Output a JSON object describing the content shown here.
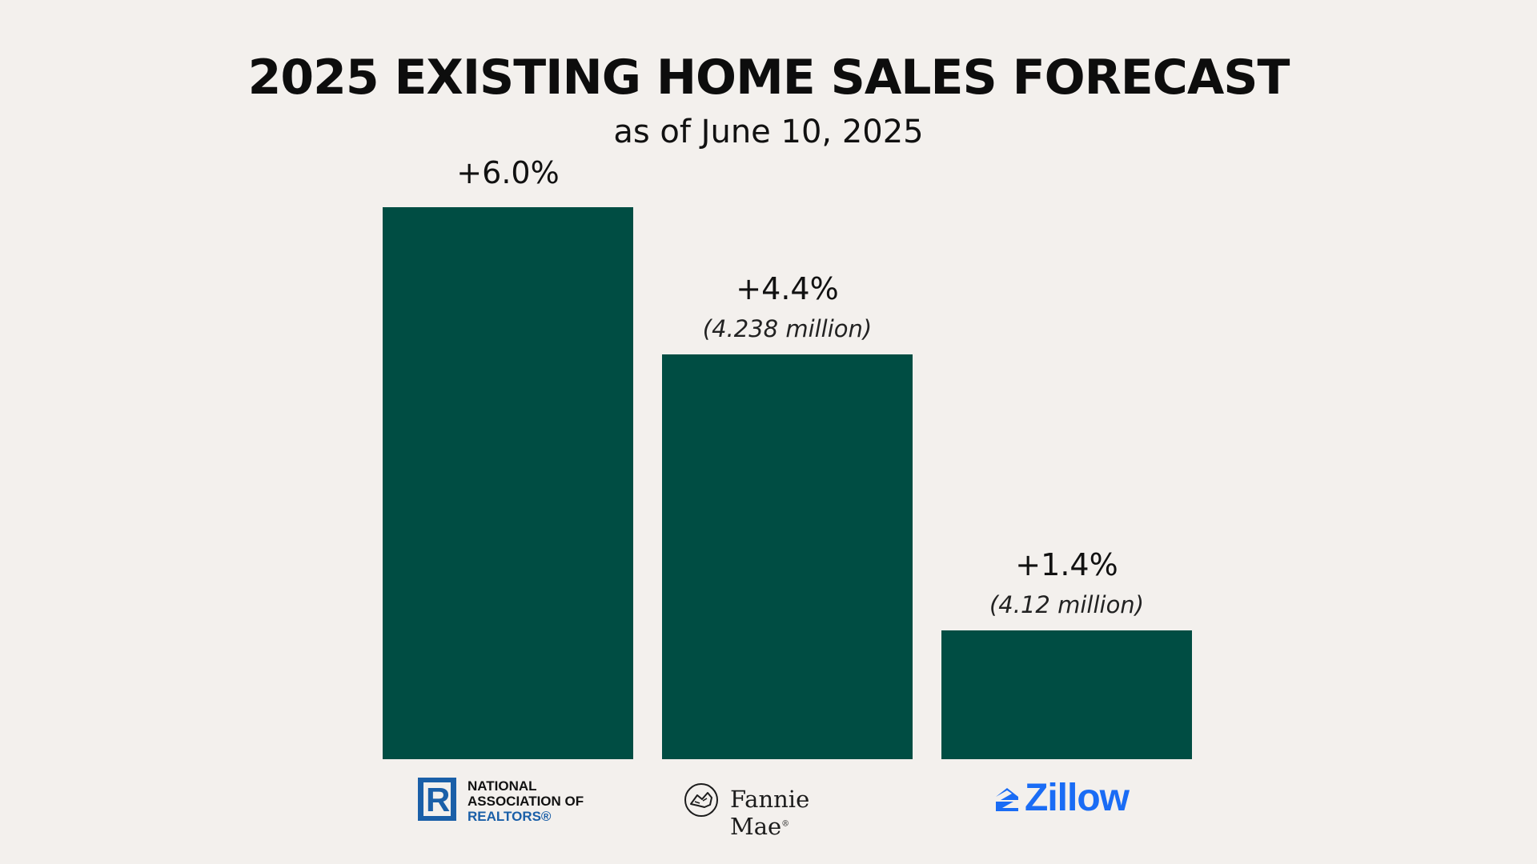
{
  "chart_data": {
    "type": "bar",
    "title": "2025 EXISTING HOME SALES FORECAST",
    "subtitle": "as of June 10, 2025",
    "categories": [
      "NATIONAL ASSOCIATION OF REALTORS®",
      "Fannie Mae",
      "Zillow"
    ],
    "values": [
      6.0,
      4.4,
      1.4
    ],
    "value_labels": [
      "+6.0%",
      "+4.4%",
      "+1.4%"
    ],
    "secondary_labels": [
      "",
      "(4.238 million)",
      "(4.12 million)"
    ],
    "ylim": [
      0,
      6.0
    ],
    "grid": false,
    "bar_color": "#004d43"
  },
  "logos": {
    "nar": {
      "mark": "R",
      "line1": "NATIONAL",
      "line2": "ASSOCIATION OF",
      "line3": "REALTORS®",
      "color": "#1a5fa8"
    },
    "fannie_mae": {
      "text": "Fannie Mae",
      "superscript": "®",
      "icon": "fannie-mae-house-icon"
    },
    "zillow": {
      "text": "Zillow",
      "icon": "zillow-house-icon",
      "color": "#1a6cf5"
    }
  }
}
